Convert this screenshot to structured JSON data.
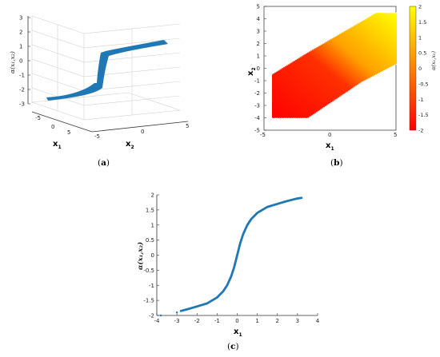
{
  "figure": {
    "captions": [
      "a",
      "b",
      "c"
    ]
  },
  "chart_data": [
    {
      "type": "scatter",
      "panel": "a",
      "projection": "3d",
      "xlabel": "x",
      "xlabel_sub": "1",
      "ylabel": "x",
      "ylabel_sub": "2",
      "zlabel": "α(x₁,x₂)",
      "x_ticks": [
        "-5",
        "0",
        "5"
      ],
      "y_ticks": [
        "-5",
        "0",
        "5"
      ],
      "z_ticks": [
        "3",
        "2",
        "1",
        "0",
        "-1",
        "-2",
        "-3"
      ],
      "xlim": [
        -5,
        5
      ],
      "ylim": [
        -5,
        5
      ],
      "zlim": [
        -3,
        3
      ],
      "grid": true,
      "series": [
        {
          "color": "#1f77b4",
          "shape": "tanh surface band"
        }
      ]
    },
    {
      "type": "heatmap",
      "panel": "b",
      "xlabel": "x",
      "xlabel_sub": "1",
      "ylabel": "x",
      "ylabel_sub": "2",
      "x_ticks": [
        "-5",
        "0",
        "5"
      ],
      "y_ticks": [
        "5",
        "4",
        "3",
        "2",
        "1",
        "0",
        "-1",
        "-2",
        "-3",
        "-4",
        "-5"
      ],
      "xlim": [
        -5,
        5
      ],
      "ylim": [
        -5,
        5
      ],
      "colorbar": {
        "label": "α(x₁,x₂)",
        "ticks": [
          "2",
          "1.5",
          "1",
          "0.5",
          "0",
          "-0.5",
          "-1",
          "-1.5",
          "-2"
        ],
        "range": [
          -2,
          2
        ],
        "colors": [
          "#ff0000",
          "#ff8000",
          "#ffff00"
        ]
      }
    },
    {
      "type": "scatter",
      "panel": "c",
      "xlabel": "x",
      "xlabel_sub": "1",
      "ylabel": "α(x₁,x₂)",
      "x_ticks": [
        "-4",
        "-3",
        "-2",
        "-1",
        "0",
        "1",
        "2",
        "3",
        "4"
      ],
      "y_ticks": [
        "2",
        "1.5",
        "1",
        "0.5",
        "0",
        "-0.5",
        "-1",
        "-1.5",
        "-2"
      ],
      "xlim": [
        -4,
        4
      ],
      "ylim": [
        -2,
        2
      ],
      "series": [
        {
          "color": "#1f77b4",
          "x": [
            -3.8,
            -3.0,
            -2.8,
            -2.5,
            -2.0,
            -1.5,
            -1.0,
            -0.7,
            -0.5,
            -0.3,
            -0.15,
            0.0,
            0.15,
            0.3,
            0.5,
            0.7,
            1.0,
            1.5,
            2.0,
            2.5,
            2.8,
            3.0,
            3.2
          ],
          "y": [
            -2.0,
            -1.9,
            -1.85,
            -1.8,
            -1.7,
            -1.6,
            -1.4,
            -1.2,
            -1.0,
            -0.7,
            -0.4,
            0.0,
            0.4,
            0.7,
            1.0,
            1.2,
            1.4,
            1.6,
            1.7,
            1.8,
            1.85,
            1.88,
            1.9
          ]
        }
      ]
    }
  ]
}
